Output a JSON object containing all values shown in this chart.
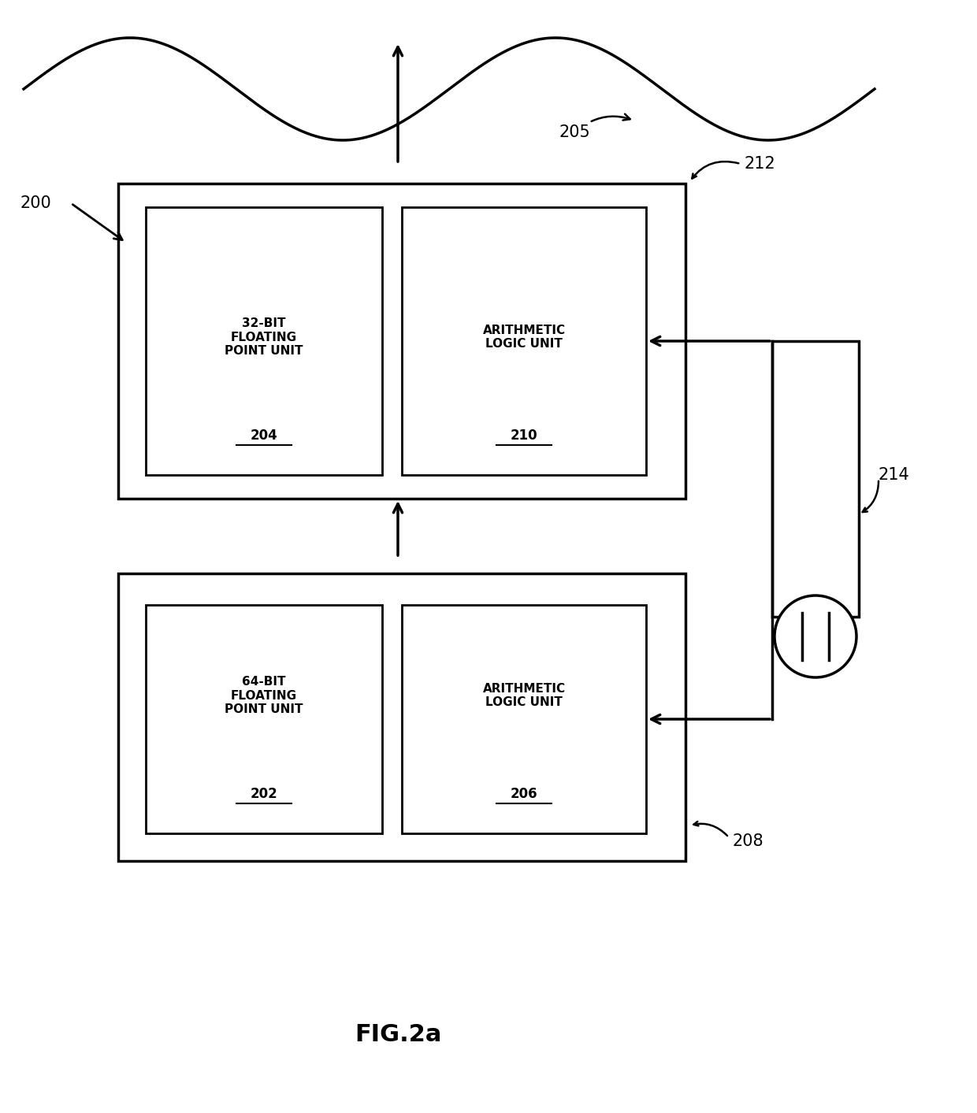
{
  "fig_width": 12.4,
  "fig_height": 14.13,
  "bg_color": "#ffffff",
  "line_color": "#000000",
  "sine_wave_label": "205",
  "label_200": "200",
  "label_212": "212",
  "label_214": "214",
  "label_208": "208",
  "box_upper_label": "32-BIT\nFLOATING\nPOINT UNIT",
  "box_upper_num": "204",
  "box_upper_alu_label": "ARITHMETIC\nLOGIC UNIT",
  "box_upper_alu_num": "210",
  "box_lower_label": "64-BIT\nFLOATING\nPOINT UNIT",
  "box_lower_num": "202",
  "box_lower_alu_label": "ARITHMETIC\nLOGIC UNIT",
  "box_lower_alu_num": "206",
  "fig_caption": "FIG.2a",
  "lw": 2.5,
  "inner_lw": 2.0
}
